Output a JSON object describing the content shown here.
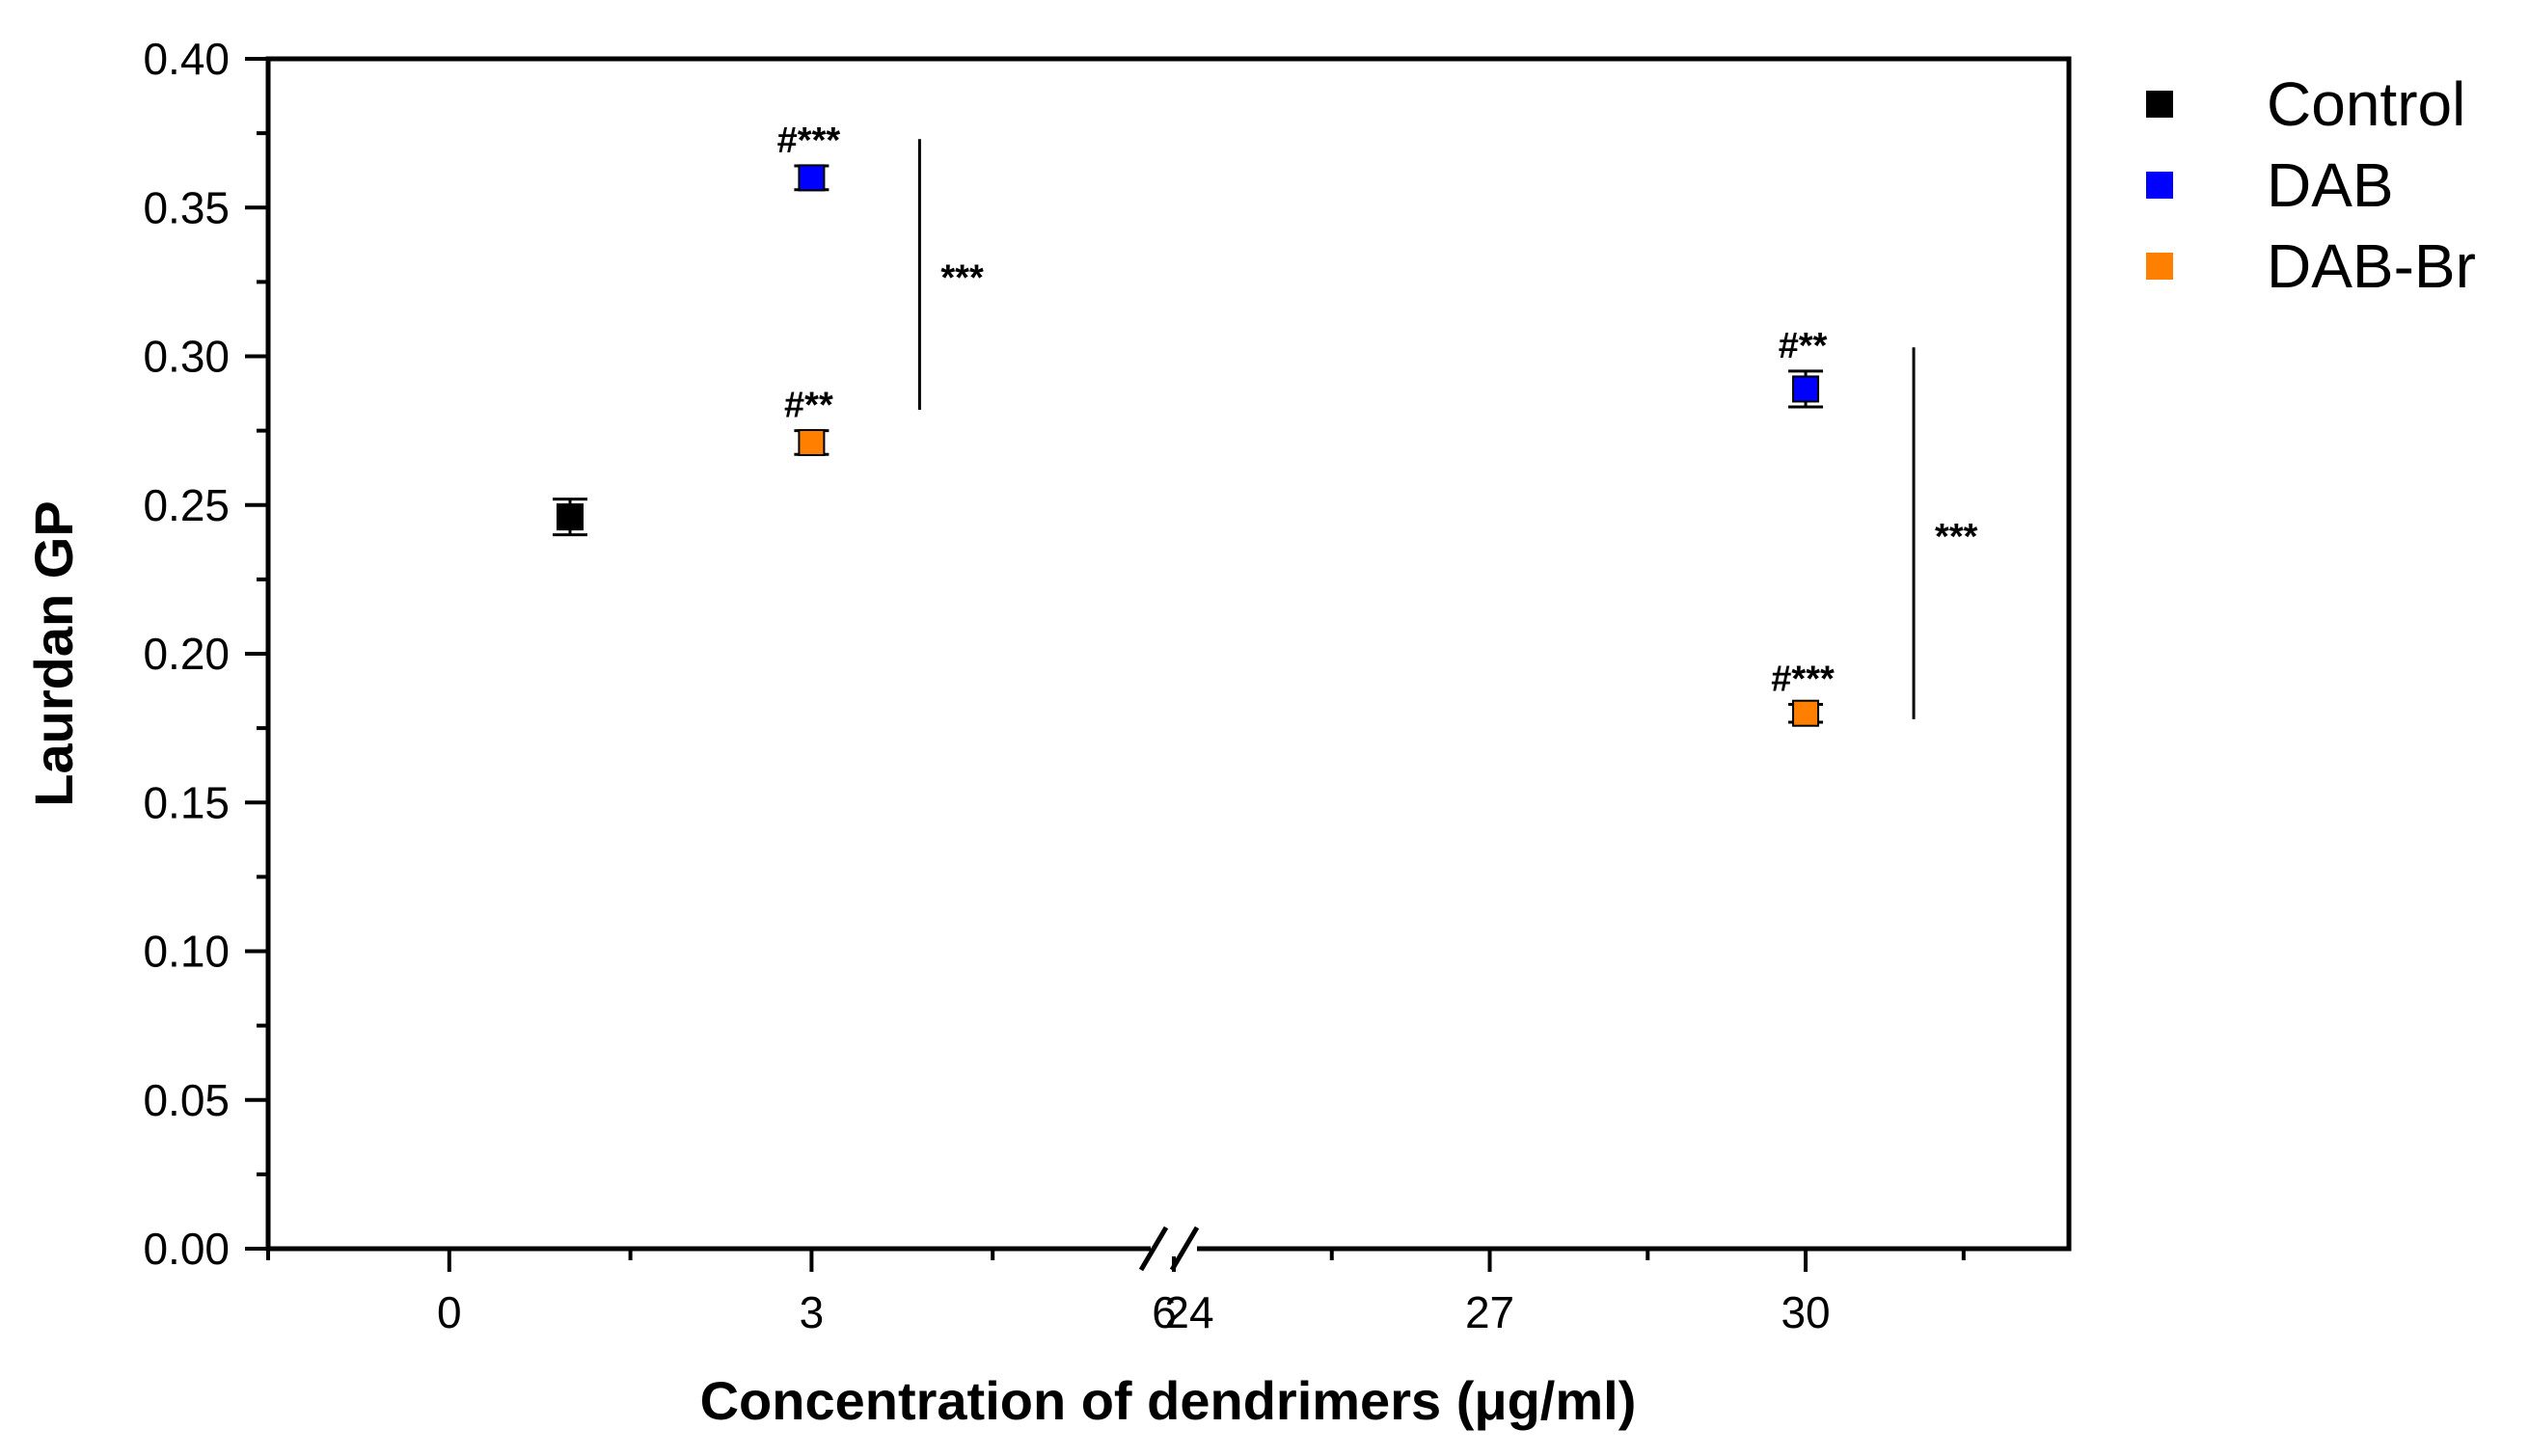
{
  "chart_data": {
    "type": "scatter",
    "title": "",
    "xlabel": "Concentration of dendrimers (μg/ml)",
    "ylabel": "Laurdan GP",
    "ylim": [
      0,
      0.4
    ],
    "yticks": [
      "0.00",
      "0.05",
      "0.10",
      "0.15",
      "0.20",
      "0.25",
      "0.30",
      "0.35",
      "0.40"
    ],
    "x_segments": [
      {
        "range": [
          -1.5,
          6
        ],
        "ticks": [
          "0",
          "3",
          "6"
        ]
      },
      {
        "range": [
          24,
          32.5
        ],
        "ticks": [
          "24",
          "27",
          "30"
        ]
      }
    ],
    "axis_break": "between 6 and 24",
    "legend_position": "top-right, outside plot",
    "series": [
      {
        "name": "Control",
        "color": "#000000",
        "points": [
          {
            "x": 1,
            "y": 0.246,
            "err": 0.006
          }
        ]
      },
      {
        "name": "DAB",
        "color": "#0000ff",
        "points": [
          {
            "x": 3,
            "y": 0.36,
            "err": 0.004,
            "label": "#***"
          },
          {
            "x": 30,
            "y": 0.289,
            "err": 0.006,
            "label": "#**"
          }
        ]
      },
      {
        "name": "DAB-Br",
        "color": "#ff8000",
        "points": [
          {
            "x": 3,
            "y": 0.271,
            "err": 0.004,
            "label": "#**"
          },
          {
            "x": 30,
            "y": 0.18,
            "err": 0.003,
            "label": "#***"
          }
        ]
      }
    ],
    "significance_brackets": [
      {
        "x": 3,
        "y_range": [
          0.282,
          0.373
        ],
        "label": "***"
      },
      {
        "x": 30,
        "y_range": [
          0.178,
          0.303
        ],
        "label": "***"
      }
    ]
  }
}
